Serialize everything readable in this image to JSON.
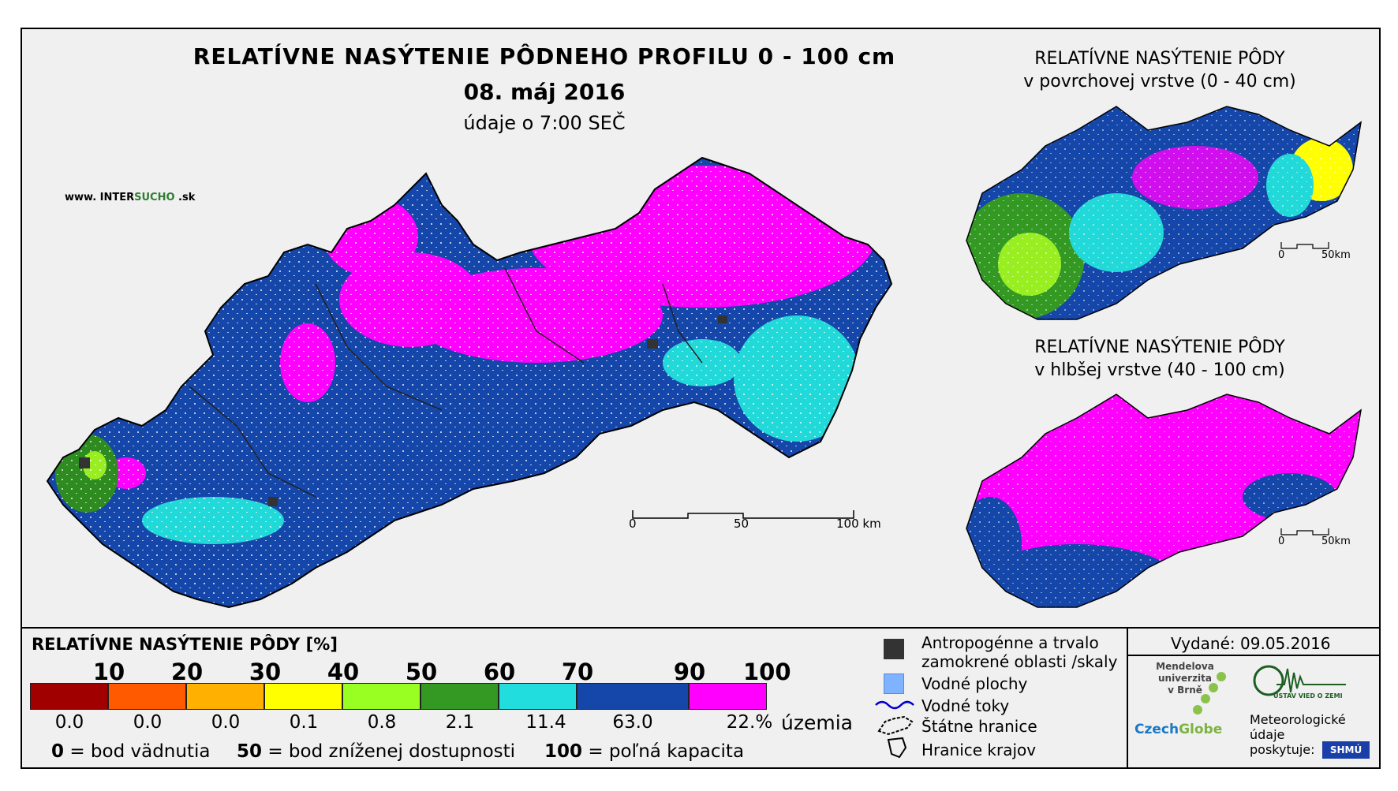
{
  "header": {
    "title": "RELATÍVNE NASÝTENIE PÔDNEHO PROFILU 0 - 100 cm",
    "date": "08. máj 2016",
    "subtitle": "údaje o 7:00 SEČ",
    "website_prefix": "www. INTER",
    "website_mid": "SUCHO",
    "website_suffix": " .sk"
  },
  "main_map": {
    "scale_labels": [
      "0",
      "50",
      "100 km"
    ],
    "colors": {
      "magenta": "#ff00ff",
      "dark_blue": "#1540b8",
      "cyan": "#22d9d9",
      "green": "#2e8b20",
      "light_green": "#99ee22",
      "yellow": "#ffff00"
    }
  },
  "inset_surface": {
    "title_line1": "RELATÍVNE NASÝTENIE PÔDY",
    "title_line2": "v povrchovej vrstve (0 - 40 cm)",
    "scale_labels": [
      "0",
      "50km"
    ]
  },
  "inset_deep": {
    "title_line1": "RELATÍVNE NASÝTENIE PÔDY",
    "title_line2": "v hlbšej vrstve (40 - 100 cm)",
    "scale_labels": [
      "0",
      "50km"
    ]
  },
  "legend": {
    "title": "RELATÍVNE NASÝTENIE PÔDY [%]",
    "thresholds": [
      "10",
      "20",
      "30",
      "40",
      "50",
      "60",
      "70",
      "90",
      "100"
    ],
    "classes": [
      {
        "color": "#a00000",
        "pct": "0.0"
      },
      {
        "color": "#ff5a00",
        "pct": "0.0"
      },
      {
        "color": "#ffb000",
        "pct": "0.0"
      },
      {
        "color": "#ffff00",
        "pct": "0.1"
      },
      {
        "color": "#99ff22",
        "pct": "0.8"
      },
      {
        "color": "#339922",
        "pct": "2.1"
      },
      {
        "color": "#22dddd",
        "pct": "11.4"
      },
      {
        "color": "#1546aa",
        "pct": "63.0"
      },
      {
        "color": "#ff00ff",
        "pct": "22.%"
      }
    ],
    "pct_unit": "územia",
    "footnotes": [
      {
        "num": "0",
        "text": "= bod vädnutia"
      },
      {
        "num": "50",
        "text": "= bod zníženej dostupnosti"
      },
      {
        "num": "100",
        "text": "= poľná kapacita"
      }
    ]
  },
  "symbols": {
    "anthro_line1": "Antropogénne a trvalo",
    "anthro_line2": "zamokrené oblasti /skaly",
    "water_bodies": "Vodné plochy",
    "water_streams": "Vodné toky",
    "state_borders": "Štátne hranice",
    "region_borders": "Hranice krajov"
  },
  "credits": {
    "issued": "Vydané: 09.05.2016",
    "mendel_line1": "Mendelova",
    "mendel_line2": "univerzita",
    "mendel_line3": "v Brně",
    "czechglobe_a": "Czech",
    "czechglobe_b": "Globe",
    "uvz": "ÚSTAV VIED O ZEMI",
    "meteo_line1": "Meteorologické",
    "meteo_line2": "údaje",
    "meteo_line3": "poskytuje:",
    "shmu": "SHMÚ"
  }
}
